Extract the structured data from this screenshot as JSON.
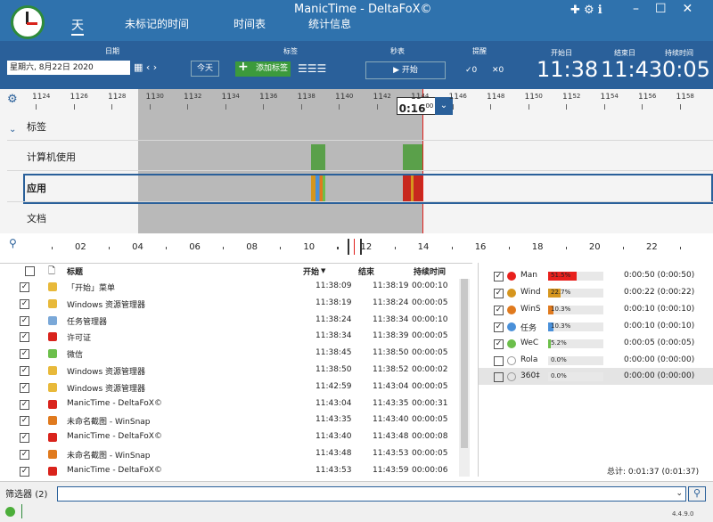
{
  "window": {
    "title": "ManicTime - DeltaFoX©",
    "version": "4.4.9.0"
  },
  "tabs": [
    "天",
    "未标记的时间",
    "时间表",
    "统计信息"
  ],
  "toolbar": {
    "date_label": "日期",
    "date": "星期六, 8月22日 2020",
    "today": "今天",
    "tags_label": "标签",
    "add_tag": "添加标签",
    "stopwatch_label": "秒表",
    "start": "开始",
    "reminder_label": "提醒",
    "reminder_done": "0",
    "reminder_cancel": "0",
    "start_day_label": "开始日",
    "start_day": "11:38",
    "end_day_label": "结束日",
    "end_day": "11:43",
    "duration_label": "持续时间",
    "duration": "0:05"
  },
  "timeline": {
    "ticks": [
      {
        "hour": "11",
        "minute": "24"
      },
      {
        "hour": "11",
        "minute": "26"
      },
      {
        "hour": "11",
        "minute": "28"
      },
      {
        "hour": "11",
        "minute": "30"
      },
      {
        "hour": "11",
        "minute": "32"
      },
      {
        "hour": "11",
        "minute": "34"
      },
      {
        "hour": "11",
        "minute": "36"
      },
      {
        "hour": "11",
        "minute": "38"
      },
      {
        "hour": "11",
        "minute": "40"
      },
      {
        "hour": "11",
        "minute": "42"
      },
      {
        "hour": "11",
        "minute": "44"
      },
      {
        "hour": "11",
        "minute": "46"
      },
      {
        "hour": "11",
        "minute": "48"
      },
      {
        "hour": "11",
        "minute": "50"
      },
      {
        "hour": "11",
        "minute": "52"
      },
      {
        "hour": "11",
        "minute": "54"
      },
      {
        "hour": "11",
        "minute": "56"
      },
      {
        "hour": "11",
        "minute": "58"
      }
    ],
    "cursor": {
      "time": "0:16",
      "seconds": "00"
    },
    "rows": [
      "标签",
      "计算机使用",
      "应用",
      "文档"
    ],
    "overview_ticks": [
      "02",
      "04",
      "06",
      "08",
      "10",
      "12",
      "14",
      "16",
      "18",
      "20",
      "22"
    ]
  },
  "table": {
    "headers": [
      "标题",
      "开始",
      "结束",
      "持续时间"
    ],
    "rows": [
      [
        "「开始」菜单",
        "11:38:09",
        "11:38:19",
        "00:00:10"
      ],
      [
        "Windows 资源管理器",
        "11:38:19",
        "11:38:24",
        "00:00:05"
      ],
      [
        "任务管理器",
        "11:38:24",
        "11:38:34",
        "00:00:10"
      ],
      [
        "许可证",
        "11:38:34",
        "11:38:39",
        "00:00:05"
      ],
      [
        "微信",
        "11:38:45",
        "11:38:50",
        "00:00:05"
      ],
      [
        "Windows 资源管理器",
        "11:38:50",
        "11:38:52",
        "00:00:02"
      ],
      [
        "Windows 资源管理器",
        "11:42:59",
        "11:43:04",
        "00:00:05"
      ],
      [
        "ManicTime - DeltaFoX©",
        "11:43:04",
        "11:43:35",
        "00:00:31"
      ],
      [
        "未命名截图 - WinSnap",
        "11:43:35",
        "11:43:40",
        "00:00:05"
      ],
      [
        "ManicTime - DeltaFoX©",
        "11:43:40",
        "11:43:48",
        "00:00:08"
      ],
      [
        "未命名截图 - WinSnap",
        "11:43:48",
        "11:43:53",
        "00:00:05"
      ],
      [
        "ManicTime - DeltaFoX©",
        "11:43:53",
        "11:43:59",
        "00:00:06"
      ]
    ]
  },
  "summary": {
    "items": [
      {
        "name": "Man",
        "percent": 51.5,
        "percent_label": "51.5%",
        "color": "#e8201c",
        "time": "0:00:50 (0:00:50)"
      },
      {
        "name": "Wind",
        "percent": 22.7,
        "percent_label": "22.7%",
        "color": "#d6961e",
        "time": "0:00:22 (0:00:22)"
      },
      {
        "name": "WinS",
        "percent": 10.3,
        "percent_label": "10.3%",
        "color": "#e07a1e",
        "time": "0:00:10 (0:00:10)"
      },
      {
        "name": "任务",
        "percent": 10.3,
        "percent_label": "10.3%",
        "color": "#4a90d9",
        "time": "0:00:10 (0:00:10)"
      },
      {
        "name": "WeC",
        "percent": 5.2,
        "percent_label": "5.2%",
        "color": "#6cbf4b",
        "time": "0:00:05 (0:00:05)"
      },
      {
        "name": "Rola",
        "percent": 0.0,
        "percent_label": "0.0%",
        "color": "#888888",
        "time": "0:00:00 (0:00:00)"
      },
      {
        "name": "360‡",
        "percent": 0.0,
        "percent_label": "0.0%",
        "color": "#888888",
        "time": "0:00:00 (0:00:00)"
      }
    ],
    "total": "总计: 0:01:37 (0:01:37)"
  },
  "filter": {
    "label": "筛选器",
    "count": "(2)"
  }
}
